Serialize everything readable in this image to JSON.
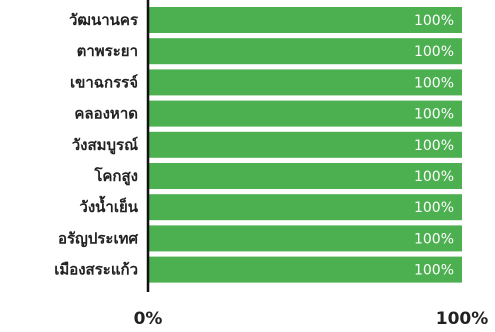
{
  "chart_data": {
    "type": "bar",
    "orientation": "horizontal",
    "categories": [
      "วัฒนานคร",
      "ตาพระยา",
      "เขาฉกรรจ์",
      "คลองหาด",
      "วังสมบูรณ์",
      "โคกสูง",
      "วังน้ำเย็น",
      "อรัญประเทศ",
      "เมืองสระแก้ว"
    ],
    "values": [
      100,
      100,
      100,
      100,
      100,
      100,
      100,
      100,
      100
    ],
    "value_labels": [
      "100%",
      "100%",
      "100%",
      "100%",
      "100%",
      "100%",
      "100%",
      "100%",
      "100%"
    ],
    "xlim": [
      0,
      100
    ],
    "x_ticks": [
      0,
      100
    ],
    "x_tick_labels": [
      "0%",
      "100%"
    ],
    "title": "",
    "xlabel": "",
    "ylabel": "",
    "grid": false,
    "legend": "none",
    "bar_color": "#4caf50",
    "axis_color": "#111111"
  }
}
